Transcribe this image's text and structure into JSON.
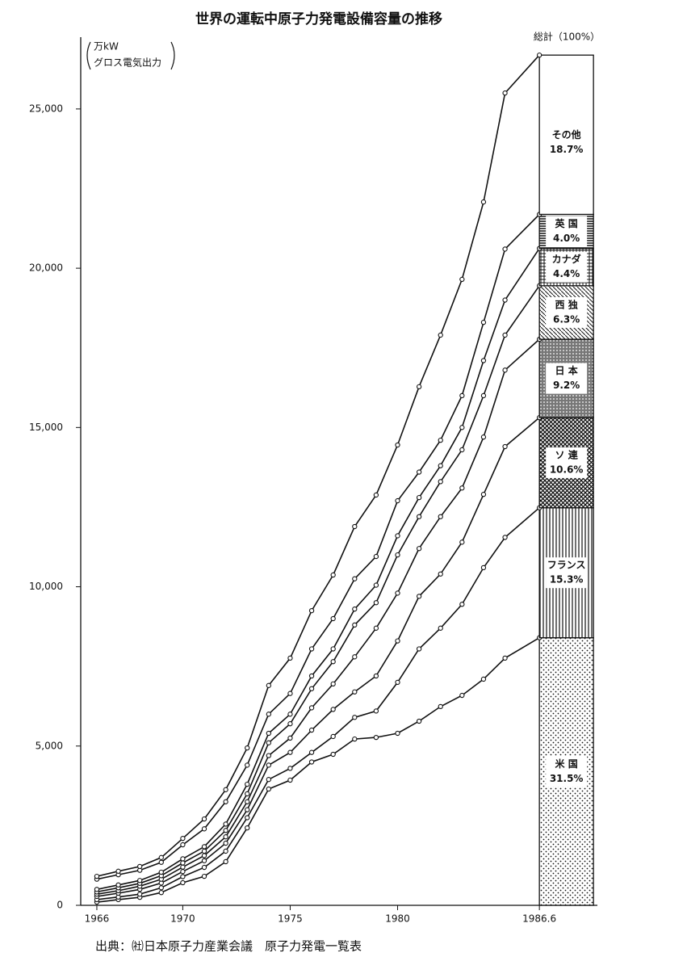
{
  "chart_data": {
    "type": "stacked-line",
    "title": "世界の運転中原子力発電設備容量の推移",
    "y_label": [
      "万kW",
      "グロス電気出力"
    ],
    "total_label": "総計（100%）",
    "source": "出典：㈳日本原子力産業会議　原子力発電一覧表",
    "x": [
      1966,
      1967,
      1968,
      1969,
      1970,
      1971,
      1972,
      1973,
      1974,
      1975,
      1976,
      1977,
      1978,
      1979,
      1980,
      1981,
      1982,
      1983,
      1984,
      1985,
      1986.6
    ],
    "xlim": [
      1965.25,
      1989.3
    ],
    "xticks": [
      1966,
      1970,
      1975,
      1980,
      1986.6
    ],
    "ylim": [
      0,
      27000
    ],
    "yticks": [
      0,
      {
        "value": 5000,
        "label": "5,000"
      },
      {
        "value": 10000,
        "label": "10,000"
      },
      {
        "value": 15000,
        "label": "15,000"
      },
      {
        "value": 20000,
        "label": "20,000"
      },
      {
        "value": 25000,
        "label": "25,000"
      }
    ],
    "color": "#111111",
    "series": [
      {
        "name": "米 国",
        "share_label": "31.5%",
        "pattern": "dots",
        "values": [
          100,
          180,
          250,
          400,
          710,
          910,
          1370,
          2430,
          3650,
          3930,
          4500,
          4740,
          5220,
          5270,
          5400,
          5780,
          6240,
          6590,
          7100,
          7760,
          8400
        ]
      },
      {
        "name": "フランス",
        "share_label": "15.3%",
        "pattern": "vlines",
        "values": [
          80,
          80,
          100,
          150,
          190,
          280,
          330,
          320,
          300,
          370,
          300,
          560,
          680,
          830,
          1600,
          2270,
          2460,
          2860,
          3500,
          3790,
          4080
        ]
      },
      {
        "name": "ソ 連",
        "share_label": "10.6%",
        "pattern": "cross",
        "values": [
          100,
          120,
          150,
          150,
          160,
          210,
          250,
          250,
          450,
          500,
          700,
          850,
          800,
          1100,
          1300,
          1650,
          1700,
          1950,
          2300,
          2850,
          2830
        ]
      },
      {
        "name": "日 本",
        "share_label": "9.2%",
        "pattern": "greydots",
        "values": [
          70,
          80,
          100,
          120,
          140,
          160,
          200,
          250,
          300,
          450,
          700,
          800,
          1100,
          1500,
          1500,
          1500,
          1800,
          1700,
          1800,
          2400,
          2460
        ]
      },
      {
        "name": "西 独",
        "share_label": "6.3%",
        "pattern": "diag",
        "values": [
          70,
          90,
          90,
          110,
          130,
          140,
          200,
          250,
          400,
          450,
          600,
          700,
          1000,
          800,
          1200,
          1000,
          1100,
          1200,
          1300,
          1100,
          1680
        ]
      },
      {
        "name": "カナダ",
        "share_label": "4.4%",
        "pattern": "checker",
        "values": [
          80,
          90,
          90,
          110,
          130,
          140,
          200,
          300,
          300,
          300,
          400,
          400,
          500,
          550,
          600,
          600,
          500,
          700,
          1100,
          1100,
          1170
        ]
      },
      {
        "name": "英 国",
        "share_label": "4.0%",
        "pattern": "hlines",
        "values": [
          320,
          320,
          320,
          310,
          440,
          560,
          700,
          600,
          600,
          650,
          850,
          950,
          950,
          900,
          1100,
          800,
          800,
          1000,
          1200,
          1600,
          1070
        ]
      },
      {
        "name": "その他",
        "share_label": "18.7%",
        "pattern": "none",
        "values": [
          90,
          110,
          120,
          150,
          200,
          310,
          380,
          540,
          900,
          1110,
          1200,
          1370,
          1640,
          1930,
          1750,
          2680,
          3300,
          3650,
          3780,
          4900,
          5000
        ]
      }
    ]
  }
}
